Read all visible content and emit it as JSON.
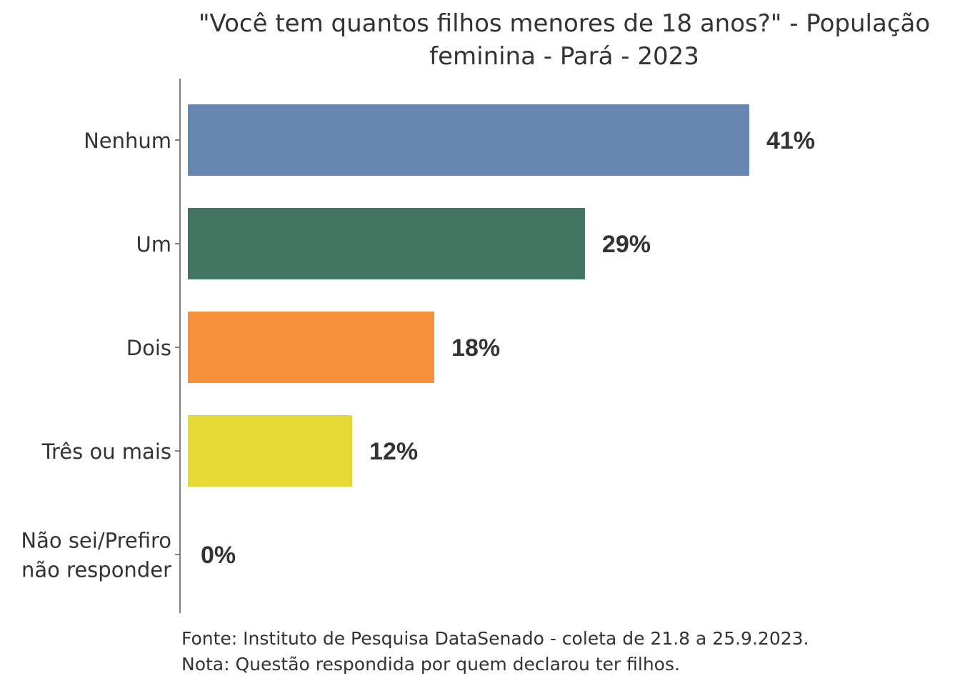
{
  "chart_data": {
    "type": "bar",
    "orientation": "horizontal",
    "title": "\"Você tem quantos filhos menores de 18 anos?\" - População feminina - Pará - 2023",
    "title_lines": [
      "\"Você tem quantos filhos menores de 18 anos?\" - População",
      "feminina - Pará - 2023"
    ],
    "categories": [
      "Nenhum",
      "Um",
      "Dois",
      "Três ou mais",
      "Não sei/Prefiro não responder"
    ],
    "category_lines": [
      [
        "Nenhum"
      ],
      [
        "Um"
      ],
      [
        "Dois"
      ],
      [
        "Três ou mais"
      ],
      [
        "Não sei/Prefiro",
        "não responder"
      ]
    ],
    "values": [
      41,
      29,
      18,
      12,
      0
    ],
    "value_labels": [
      "41%",
      "29%",
      "18%",
      "12%",
      "0%"
    ],
    "colors": [
      "#6688b0",
      "#437563",
      "#f8913b",
      "#e5d935",
      "#cccccc"
    ],
    "xlabel": "",
    "ylabel": "",
    "grid": false,
    "legend": "none"
  },
  "footer": {
    "source": "Fonte: Instituto de Pesquisa DataSenado - coleta de 21.8 a 25.9.2023.",
    "note": "Nota: Questão respondida por quem declarou ter filhos."
  }
}
